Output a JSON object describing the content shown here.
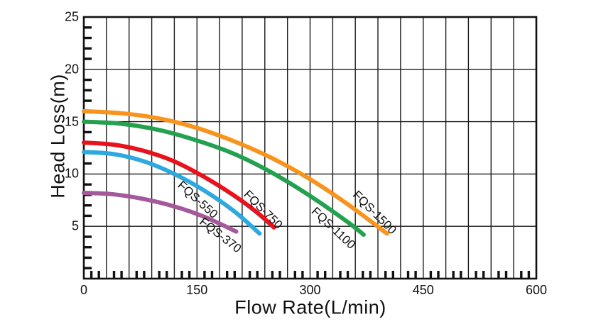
{
  "chart_data": {
    "type": "line",
    "title": "",
    "xlabel": "Flow Rate(L/min)",
    "ylabel": "Head Loss(m)",
    "xlim": [
      0,
      600
    ],
    "ylim": [
      0,
      25
    ],
    "grid": true,
    "x_major_grid_step": 30,
    "y_major_grid_step": 5,
    "x_minor_tick_step": 10,
    "y_minor_tick_step": 1,
    "x_tick_labels": [
      0,
      150,
      300,
      450,
      600
    ],
    "y_tick_labels": [
      5,
      10,
      15,
      20,
      25
    ],
    "axis_color": "#111111",
    "grid_color": "#1a1a1a",
    "legend_position": "inline-curve-labels",
    "series": [
      {
        "name": "FQS-370",
        "color": "#a4599b",
        "points": [
          [
            0,
            8.2
          ],
          [
            40,
            8.05
          ],
          [
            80,
            7.6
          ],
          [
            120,
            6.9
          ],
          [
            160,
            5.9
          ],
          [
            202,
            4.5
          ]
        ],
        "label": {
          "x": 181,
          "y": 4.1,
          "angle": 38
        }
      },
      {
        "name": "FQS-550",
        "color": "#2ea9e0",
        "points": [
          [
            0,
            12.1
          ],
          [
            40,
            11.9
          ],
          [
            80,
            11.2
          ],
          [
            120,
            10.0
          ],
          [
            160,
            8.4
          ],
          [
            200,
            6.4
          ],
          [
            233,
            4.3
          ]
        ],
        "label": {
          "x": 151,
          "y": 7.55,
          "angle": 42
        }
      },
      {
        "name": "FQS-750",
        "color": "#e8121c",
        "points": [
          [
            0,
            13.0
          ],
          [
            40,
            12.8
          ],
          [
            80,
            12.2
          ],
          [
            120,
            11.2
          ],
          [
            160,
            9.7
          ],
          [
            200,
            7.9
          ],
          [
            230,
            6.3
          ],
          [
            252,
            4.9
          ]
        ],
        "label": {
          "x": 237,
          "y": 6.6,
          "angle": 45
        }
      },
      {
        "name": "FQS-1100",
        "color": "#23a14e",
        "points": [
          [
            0,
            15.0
          ],
          [
            50,
            14.8
          ],
          [
            100,
            14.2
          ],
          [
            150,
            13.2
          ],
          [
            200,
            11.9
          ],
          [
            250,
            10.1
          ],
          [
            300,
            7.9
          ],
          [
            350,
            5.4
          ],
          [
            371,
            4.2
          ]
        ],
        "label": {
          "x": 331,
          "y": 4.8,
          "angle": 43
        }
      },
      {
        "name": "FQS-1500",
        "color": "#f7941e",
        "points": [
          [
            0,
            16.0
          ],
          [
            50,
            15.8
          ],
          [
            100,
            15.3
          ],
          [
            150,
            14.4
          ],
          [
            200,
            13.1
          ],
          [
            250,
            11.5
          ],
          [
            300,
            9.5
          ],
          [
            350,
            7.1
          ],
          [
            402,
            4.3
          ]
        ],
        "label": {
          "x": 385,
          "y": 6.3,
          "angle": 45
        }
      }
    ]
  }
}
